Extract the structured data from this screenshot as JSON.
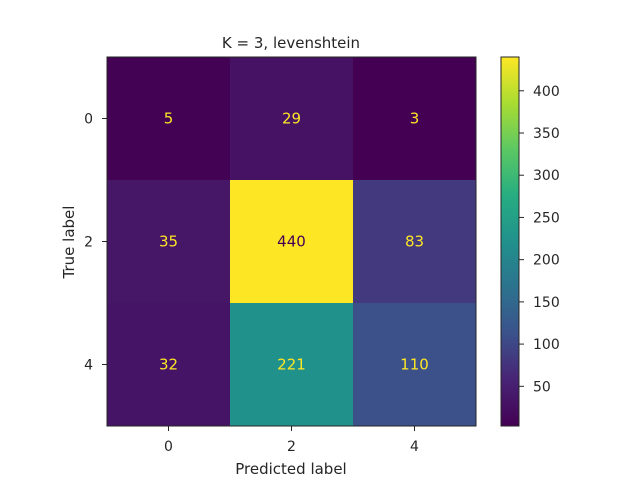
{
  "chart_data": {
    "type": "heatmap",
    "title": "K = 3, levenshtein",
    "xlabel": "Predicted label",
    "ylabel": "True label",
    "x_categories": [
      "0",
      "2",
      "4"
    ],
    "y_categories": [
      "0",
      "2",
      "4"
    ],
    "values": [
      [
        5,
        29,
        3
      ],
      [
        35,
        440,
        83
      ],
      [
        32,
        221,
        110
      ]
    ],
    "colormap": "viridis",
    "value_range": [
      3,
      440
    ],
    "colorbar_ticks": [
      50,
      100,
      150,
      200,
      250,
      300,
      350,
      400
    ],
    "grid": false,
    "label_colors": {
      "on_dark": "#fde725",
      "on_light": "#440154"
    }
  }
}
